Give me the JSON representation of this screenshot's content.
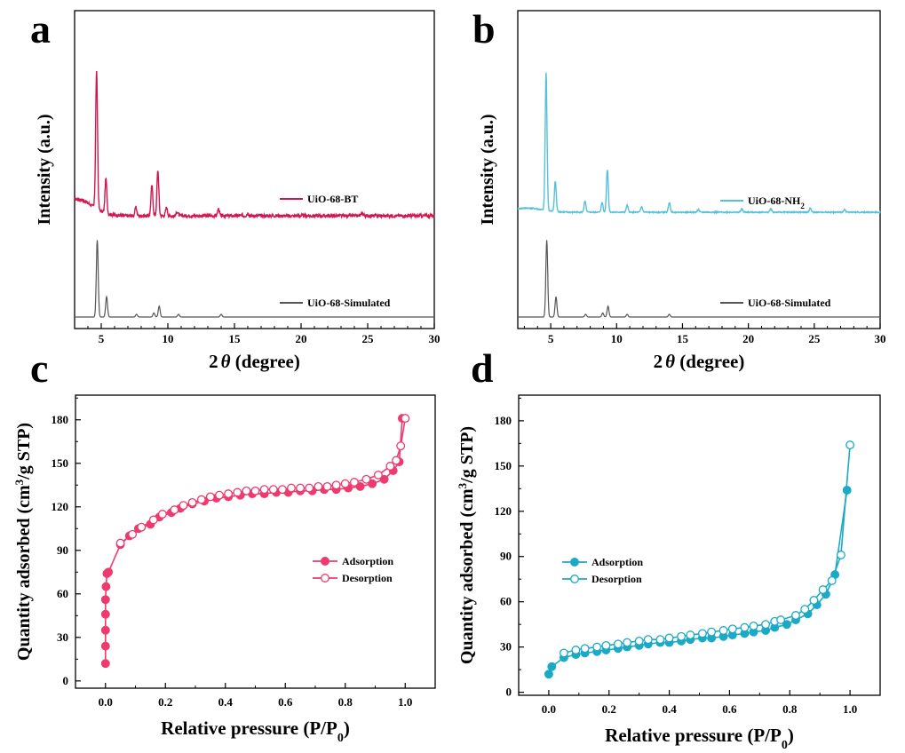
{
  "panels": [
    {
      "letter": "a"
    },
    {
      "letter": "b"
    },
    {
      "letter": "c"
    },
    {
      "letter": "d"
    }
  ],
  "colors": {
    "bt": "#d2174e",
    "nh2": "#56c0da",
    "simulated": "#555555",
    "iso_c": "#ee3a6e",
    "iso_d": "#1aaac6"
  },
  "chart_data": [
    {
      "panel": "a",
      "type": "line",
      "xlabel_prefix": "2",
      "xlabel_symbol": "θ",
      "xlabel_suffix": " (degree)",
      "ylabel": "Intensity (a.u.)",
      "xlim": [
        3,
        30
      ],
      "xticks": [
        5,
        10,
        15,
        20,
        25,
        30
      ],
      "yticks": [],
      "legend_placement": "right",
      "series": [
        {
          "name": "UiO-68-BT",
          "color": "#d2174e",
          "baseline": 1.0,
          "noise": 0.012,
          "peaks": [
            {
              "x": 4.65,
              "h": 1.0
            },
            {
              "x": 5.35,
              "h": 0.25
            },
            {
              "x": 7.6,
              "h": 0.06
            },
            {
              "x": 8.8,
              "h": 0.22
            },
            {
              "x": 9.25,
              "h": 0.33
            },
            {
              "x": 9.9,
              "h": 0.06
            },
            {
              "x": 10.7,
              "h": 0.03
            },
            {
              "x": 13.8,
              "h": 0.05
            },
            {
              "x": 16.0,
              "h": 0.02
            },
            {
              "x": 24.6,
              "h": 0.02
            }
          ]
        },
        {
          "name": "UiO-68-Simulated",
          "color": "#555555",
          "baseline": 0.0,
          "noise": 0.0,
          "peaks": [
            {
              "x": 4.7,
              "h": 0.57
            },
            {
              "x": 5.4,
              "h": 0.15
            },
            {
              "x": 7.65,
              "h": 0.02
            },
            {
              "x": 8.95,
              "h": 0.03
            },
            {
              "x": 9.35,
              "h": 0.08
            },
            {
              "x": 10.8,
              "h": 0.02
            },
            {
              "x": 14.0,
              "h": 0.02
            }
          ]
        }
      ]
    },
    {
      "panel": "b",
      "type": "line",
      "xlabel_prefix": "2",
      "xlabel_symbol": "θ",
      "xlabel_suffix": " (degree)",
      "ylabel": "Intensity (a.u.)",
      "xlim": [
        2.5,
        30
      ],
      "xticks": [
        5,
        10,
        15,
        20,
        25,
        30
      ],
      "yticks": [],
      "legend_placement": "right",
      "series": [
        {
          "name": "UiO-68-NH",
          "name_subscript": "2",
          "color": "#56c0da",
          "baseline": 1.0,
          "noise": 0.004,
          "peaks": [
            {
              "x": 4.65,
              "h": 1.0
            },
            {
              "x": 5.35,
              "h": 0.22
            },
            {
              "x": 7.6,
              "h": 0.08
            },
            {
              "x": 8.9,
              "h": 0.07
            },
            {
              "x": 9.3,
              "h": 0.31
            },
            {
              "x": 10.8,
              "h": 0.05
            },
            {
              "x": 11.9,
              "h": 0.04
            },
            {
              "x": 14.0,
              "h": 0.07
            },
            {
              "x": 16.2,
              "h": 0.02
            },
            {
              "x": 19.5,
              "h": 0.025
            },
            {
              "x": 21.7,
              "h": 0.025
            },
            {
              "x": 24.7,
              "h": 0.03
            },
            {
              "x": 27.3,
              "h": 0.02
            }
          ]
        },
        {
          "name": "UiO-68-Simulated",
          "color": "#555555",
          "baseline": 0.0,
          "noise": 0.0,
          "peaks": [
            {
              "x": 4.7,
              "h": 0.57
            },
            {
              "x": 5.4,
              "h": 0.15
            },
            {
              "x": 7.65,
              "h": 0.02
            },
            {
              "x": 8.95,
              "h": 0.03
            },
            {
              "x": 9.35,
              "h": 0.08
            },
            {
              "x": 10.8,
              "h": 0.02
            },
            {
              "x": 14.0,
              "h": 0.02
            }
          ]
        }
      ]
    },
    {
      "panel": "c",
      "type": "scatter",
      "xlabel": "Relative pressure (P/P",
      "xlabel_subscript": "0",
      "xlabel_close": ")",
      "ylabel": "Quantity adsorbed (cm",
      "ylabel_sup": "3",
      "ylabel_close": "/g STP)",
      "xlim": [
        -0.1,
        1.1
      ],
      "ylim": [
        -5,
        197
      ],
      "xticks": [
        0.0,
        0.2,
        0.4,
        0.6,
        0.8,
        1.0
      ],
      "xtick_labels": [
        "0.0",
        "0.2",
        "0.4",
        "0.6",
        "0.8",
        "1.0"
      ],
      "yticks": [
        0,
        30,
        60,
        90,
        120,
        150,
        180
      ],
      "legend_placement": "center-right",
      "series": [
        {
          "name": "Adsorption",
          "color": "#ee3a6e",
          "filled": true,
          "x": [
            0.0,
            0.0,
            0.0,
            0.0,
            0.0,
            0.002,
            0.005,
            0.01,
            0.05,
            0.08,
            0.11,
            0.15,
            0.18,
            0.22,
            0.25,
            0.29,
            0.33,
            0.37,
            0.41,
            0.45,
            0.49,
            0.53,
            0.57,
            0.61,
            0.65,
            0.69,
            0.73,
            0.77,
            0.81,
            0.85,
            0.89,
            0.93,
            0.96,
            0.98,
            0.99
          ],
          "y": [
            12,
            24,
            35,
            46,
            56,
            65,
            74,
            75,
            94,
            100,
            105,
            108,
            113,
            116,
            119,
            122,
            124,
            126,
            127,
            128,
            129,
            129,
            130,
            130,
            131,
            131,
            132,
            132,
            133,
            134,
            136,
            139,
            145,
            151,
            181
          ]
        },
        {
          "name": "Desorption",
          "color": "#ee3a6e",
          "filled": false,
          "x": [
            0.05,
            0.09,
            0.12,
            0.16,
            0.19,
            0.23,
            0.26,
            0.29,
            0.32,
            0.35,
            0.38,
            0.41,
            0.44,
            0.47,
            0.5,
            0.53,
            0.56,
            0.59,
            0.62,
            0.65,
            0.68,
            0.71,
            0.74,
            0.77,
            0.8,
            0.83,
            0.87,
            0.91,
            0.95,
            0.97,
            0.985,
            1.0
          ],
          "y": [
            95,
            101,
            106,
            111,
            115,
            118,
            121,
            123,
            125,
            127,
            128,
            129,
            130,
            131,
            131,
            132,
            132,
            132,
            133,
            133,
            133,
            134,
            134,
            135,
            136,
            137,
            139,
            142,
            148,
            152,
            162,
            181
          ]
        }
      ]
    },
    {
      "panel": "d",
      "type": "scatter",
      "xlabel": "Relative pressure (P/P",
      "xlabel_subscript": "0",
      "xlabel_close": ")",
      "ylabel": "Quantity adsorbed (cm",
      "ylabel_sup": "3",
      "ylabel_close": "/g STP)",
      "xlim": [
        -0.1,
        1.1
      ],
      "ylim": [
        -2,
        197
      ],
      "xticks": [
        0.0,
        0.2,
        0.4,
        0.6,
        0.8,
        1.0
      ],
      "xtick_labels": [
        "0.0",
        "0.2",
        "0.4",
        "0.6",
        "0.8",
        "1.0"
      ],
      "yticks": [
        0,
        30,
        60,
        90,
        120,
        150,
        180
      ],
      "legend_placement": "center-left",
      "series": [
        {
          "name": "Adsorption",
          "color": "#1aaac6",
          "filled": true,
          "x": [
            0.0,
            0.01,
            0.05,
            0.09,
            0.12,
            0.16,
            0.19,
            0.23,
            0.26,
            0.3,
            0.33,
            0.37,
            0.4,
            0.44,
            0.47,
            0.51,
            0.54,
            0.58,
            0.61,
            0.65,
            0.68,
            0.72,
            0.75,
            0.79,
            0.82,
            0.86,
            0.89,
            0.92,
            0.95,
            0.99
          ],
          "y": [
            12,
            17,
            23,
            25,
            26,
            27,
            28,
            29,
            30,
            31,
            32,
            33,
            33,
            34,
            35,
            36,
            36,
            37,
            38,
            39,
            40,
            41,
            43,
            45,
            48,
            52,
            58,
            65,
            78,
            134
          ]
        },
        {
          "name": "Desorption",
          "color": "#1aaac6",
          "filled": false,
          "x": [
            0.05,
            0.09,
            0.12,
            0.16,
            0.19,
            0.23,
            0.26,
            0.3,
            0.33,
            0.37,
            0.4,
            0.44,
            0.47,
            0.51,
            0.54,
            0.58,
            0.61,
            0.65,
            0.68,
            0.72,
            0.75,
            0.77,
            0.82,
            0.85,
            0.88,
            0.91,
            0.94,
            0.97,
            1.0
          ],
          "y": [
            26,
            28,
            29,
            30,
            31,
            32,
            33,
            34,
            35,
            35,
            36,
            37,
            38,
            39,
            40,
            41,
            42,
            43,
            44,
            45,
            47,
            48,
            51,
            55,
            61,
            68,
            74,
            91,
            164
          ]
        }
      ]
    }
  ]
}
